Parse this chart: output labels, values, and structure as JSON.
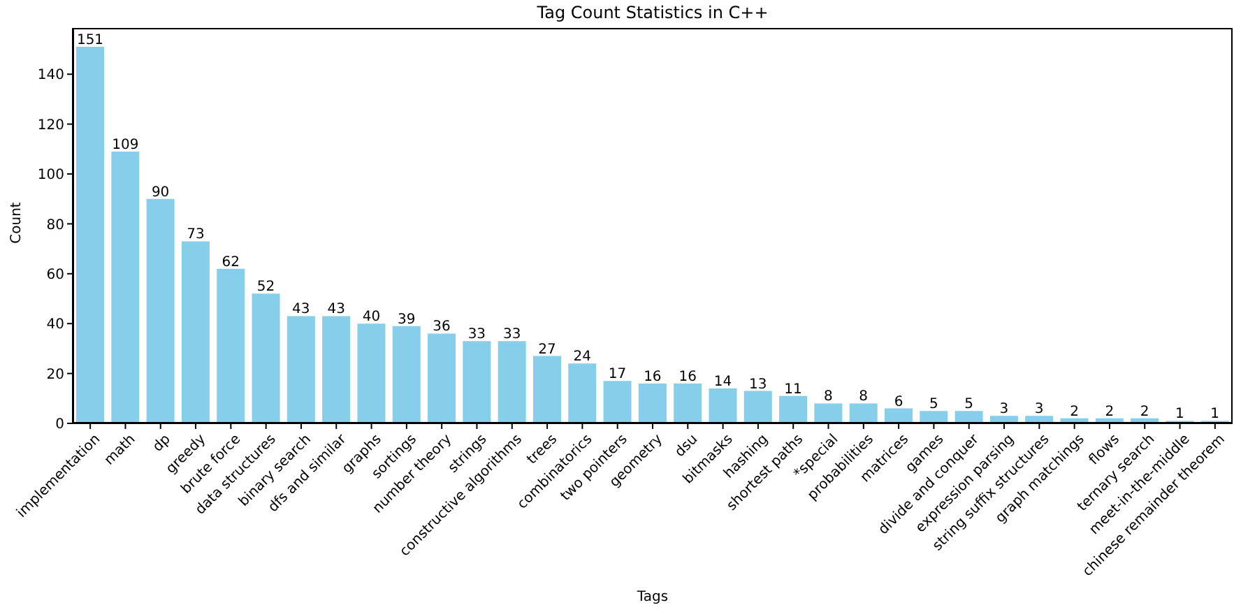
{
  "chart_data": {
    "type": "bar",
    "title": "Tag Count Statistics in C++",
    "xlabel": "Tags",
    "ylabel": "Count",
    "categories": [
      "implementation",
      "math",
      "dp",
      "greedy",
      "brute force",
      "data structures",
      "binary search",
      "dfs and similar",
      "graphs",
      "sortings",
      "number theory",
      "strings",
      "constructive algorithms",
      "trees",
      "combinatorics",
      "two pointers",
      "geometry",
      "dsu",
      "bitmasks",
      "hashing",
      "shortest paths",
      "*special",
      "probabilities",
      "matrices",
      "games",
      "divide and conquer",
      "expression parsing",
      "string suffix structures",
      "graph matchings",
      "flows",
      "ternary search",
      "meet-in-the-middle",
      "chinese remainder theorem"
    ],
    "values": [
      151,
      109,
      90,
      73,
      62,
      52,
      43,
      43,
      40,
      39,
      36,
      33,
      33,
      27,
      24,
      17,
      16,
      16,
      14,
      13,
      11,
      8,
      8,
      6,
      5,
      5,
      3,
      3,
      2,
      2,
      2,
      1,
      1
    ],
    "color": "#87ceeb",
    "ylim": [
      0,
      158.55
    ],
    "yticks": [
      0,
      20,
      40,
      60,
      80,
      100,
      120,
      140
    ],
    "data_labels": true
  }
}
